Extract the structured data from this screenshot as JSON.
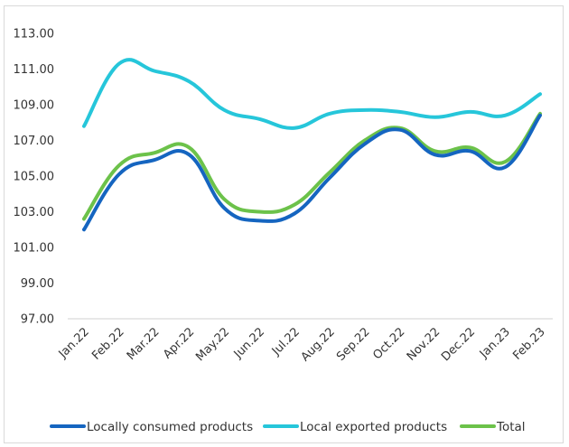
{
  "chart_data": {
    "type": "line",
    "title": "",
    "xlabel": "",
    "ylabel": "",
    "categories": [
      "Jan.22",
      "Feb.22",
      "Mar.22",
      "Apr.22",
      "May.22",
      "Jun.22",
      "Jul.22",
      "Aug.22",
      "Sep.22",
      "Oct.22",
      "Nov.22",
      "Dec.22",
      "Jan.23",
      "Feb.23"
    ],
    "ylim": [
      97,
      113
    ],
    "yticks": [
      "97.00",
      "99.00",
      "101.00",
      "103.00",
      "105.00",
      "107.00",
      "109.00",
      "111.00",
      "113.00"
    ],
    "grid": false,
    "legend_position": "bottom",
    "series": [
      {
        "name": "Locally consumed products",
        "color": "#1565c0",
        "values": [
          102.0,
          105.1,
          105.9,
          106.2,
          103.2,
          102.5,
          102.9,
          104.9,
          106.8,
          107.6,
          106.2,
          106.4,
          105.5,
          108.4
        ]
      },
      {
        "name": "Local exported products",
        "color": "#26c6da",
        "values": [
          107.8,
          111.3,
          110.9,
          110.3,
          108.7,
          108.2,
          107.7,
          108.5,
          108.7,
          108.6,
          108.3,
          108.6,
          108.4,
          109.6
        ]
      },
      {
        "name": "Total",
        "color": "#6cc24a",
        "values": [
          102.6,
          105.6,
          106.3,
          106.6,
          103.7,
          103.0,
          103.4,
          105.2,
          107.0,
          107.7,
          106.4,
          106.6,
          105.8,
          108.5
        ]
      }
    ]
  }
}
